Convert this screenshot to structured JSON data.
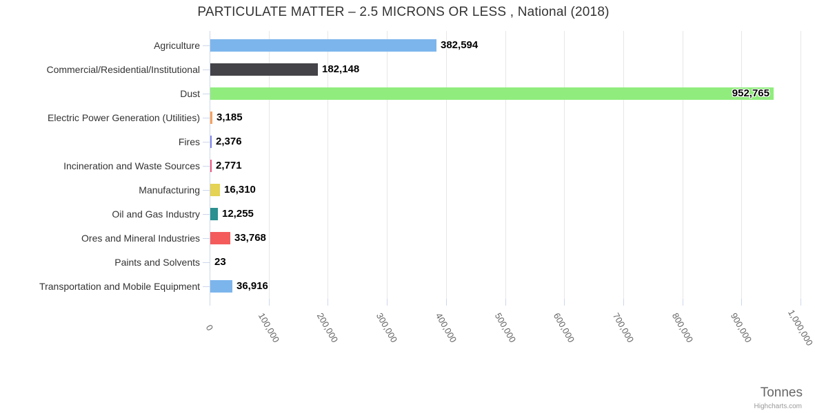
{
  "chart_data": {
    "type": "bar",
    "orientation": "horizontal",
    "title": "PARTICULATE MATTER – 2.5 MICRONS OR LESS , National (2018)",
    "xlabel": "Tonnes",
    "ylabel": "",
    "xlim": [
      0,
      1000000
    ],
    "grid": true,
    "legend": false,
    "categories": [
      "Agriculture",
      "Commercial/Residential/Institutional",
      "Dust",
      "Electric Power Generation (Utilities)",
      "Fires",
      "Incineration and Waste Sources",
      "Manufacturing",
      "Oil and Gas Industry",
      "Ores and Mineral Industries",
      "Paints and Solvents",
      "Transportation and Mobile Equipment"
    ],
    "values": [
      382594,
      182148,
      952765,
      3185,
      2376,
      2771,
      16310,
      12255,
      33768,
      23,
      36916
    ],
    "value_labels": [
      "382,594",
      "182,148",
      "952,765",
      "3,185",
      "2,376",
      "2,771",
      "16,310",
      "12,255",
      "33,768",
      "23",
      "36,916"
    ],
    "bar_colors": [
      "#7cb5ec",
      "#434348",
      "#90ed7d",
      "#f7a35c",
      "#8085e9",
      "#f15c80",
      "#e4d354",
      "#2b908f",
      "#f45b5b",
      "#91e8e1",
      "#7cb5ec"
    ],
    "x_tick_values": [
      0,
      100000,
      200000,
      300000,
      400000,
      500000,
      600000,
      700000,
      800000,
      900000,
      1000000
    ],
    "x_tick_labels": [
      "0",
      "100,000",
      "200,000",
      "300,000",
      "400,000",
      "500,000",
      "600,000",
      "700,000",
      "800,000",
      "900,000",
      "1,000,000"
    ]
  },
  "colors": {
    "background": "#ffffff",
    "grid_line": "#e6e6e6",
    "axis_line": "#ccd6eb",
    "title_text": "#333333",
    "category_text": "#333333",
    "tick_text": "#666666",
    "data_label_text": "#000000",
    "axis_title_text": "#666666",
    "credit_text": "#999999"
  },
  "credit_label": "Highcharts.com"
}
